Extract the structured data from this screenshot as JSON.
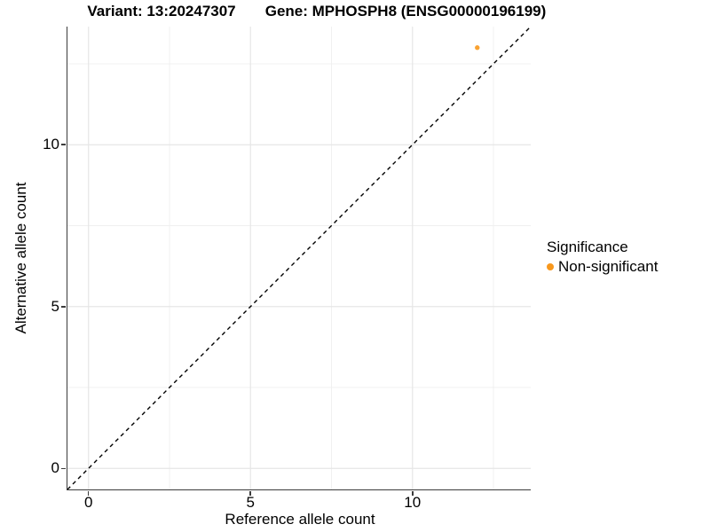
{
  "header": {
    "title_left": "Variant: 13:20247307",
    "title_right": "Gene: MPHOSPH8 (ENSG00000196199)"
  },
  "chart_data": {
    "type": "scatter",
    "title_left": "Variant: 13:20247307",
    "title_right": "Gene: MPHOSPH8 (ENSG00000196199)",
    "xlabel": "Reference allele count",
    "ylabel": "Alternative allele count",
    "xlim": [
      -0.65,
      13.65
    ],
    "ylim": [
      -0.65,
      13.65
    ],
    "x_ticks": {
      "values": [
        0,
        5,
        10
      ],
      "labels": [
        "0",
        "5",
        "10"
      ]
    },
    "y_ticks": {
      "values": [
        0,
        5,
        10
      ],
      "labels": [
        "0",
        "5",
        "10"
      ]
    },
    "x_minor_ticks": [
      2.5,
      7.5,
      12.5
    ],
    "y_minor_ticks": [
      2.5,
      7.5,
      12.5
    ],
    "grid": "major and minor gridlines, light grey on white",
    "legend": {
      "title": "Significance",
      "position": "right",
      "entries": [
        {
          "label": "Non-significant",
          "color": "#F8981D"
        }
      ]
    },
    "series": [
      {
        "name": "Non-significant",
        "color": "#F9A232",
        "points": [
          {
            "x": 12,
            "y": 13
          }
        ]
      }
    ],
    "reference_line": {
      "kind": "identity y=x",
      "style": "dashed",
      "color": "#000000"
    }
  },
  "colors": {
    "background": "#FFFFFF",
    "axis_line": "#3C3C3C",
    "grid_major": "#E6E6E6",
    "grid_minor": "#F0F0F0",
    "text": "#000000",
    "point_orange": "#F9A232",
    "legend_orange": "#F8981D"
  }
}
